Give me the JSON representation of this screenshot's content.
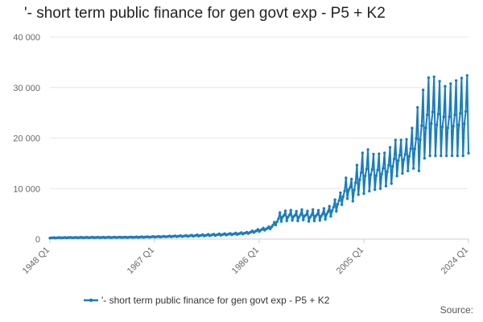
{
  "chart_data": {
    "type": "line",
    "title": "'- short term public finance for gen govt exp - P5 + K2",
    "xlabel": "",
    "ylabel": "",
    "x_range": [
      "1948 Q1",
      "2024 Q1"
    ],
    "x_tick_labels": [
      "1948 Q1",
      "1967 Q1",
      "1986 Q1",
      "2005 Q1",
      "2024 Q1"
    ],
    "ylim": [
      0,
      40000
    ],
    "y_tick_values": [
      0,
      10000,
      20000,
      30000,
      40000
    ],
    "y_tick_labels": [
      "0",
      "10 000",
      "20 000",
      "30 000",
      "40 000"
    ],
    "grid": "horizontal",
    "legend_position": "bottom",
    "series": [
      {
        "name": "'- short term public finance for gen govt exp - P5 + K2",
        "color": "#1a7dbd",
        "x": [
          "1948",
          "1952",
          "1956",
          "1960",
          "1964",
          "1968",
          "1972",
          "1976",
          "1978",
          "1980",
          "1982",
          "1984",
          "1986",
          "1988",
          "1989",
          "1990",
          "1991",
          "1992",
          "1993",
          "1994",
          "1995",
          "1996",
          "1997",
          "1998",
          "1999",
          "2000",
          "2001",
          "2002",
          "2003",
          "2004",
          "2005",
          "2006",
          "2007",
          "2008",
          "2009",
          "2010",
          "2011",
          "2012",
          "2013",
          "2014",
          "2015",
          "2016",
          "2017",
          "2018",
          "2019",
          "2020",
          "2021",
          "2022",
          "2023",
          "2024"
        ],
        "peak": [
          300,
          350,
          380,
          400,
          450,
          550,
          700,
          900,
          1000,
          1100,
          1200,
          1400,
          2000,
          2500,
          3600,
          5800,
          5500,
          5800,
          5400,
          6000,
          5400,
          6000,
          5600,
          6200,
          6600,
          8200,
          9500,
          13000,
          11500,
          15700,
          17500,
          17800,
          16500,
          17000,
          17100,
          18500,
          20000,
          19500,
          19800,
          22700,
          27200,
          30300,
          32500,
          32000,
          31000,
          30000,
          31000,
          31500,
          32000,
          32500
        ],
        "trough": [
          200,
          250,
          270,
          300,
          320,
          400,
          500,
          600,
          700,
          800,
          900,
          1100,
          1500,
          2000,
          2800,
          3500,
          3600,
          3700,
          3600,
          3800,
          3500,
          3600,
          3700,
          3900,
          4500,
          5500,
          6800,
          8000,
          7500,
          8800,
          9000,
          9500,
          9800,
          10000,
          10500,
          11000,
          12500,
          13000,
          13500,
          14000,
          13500,
          16000,
          16500,
          16500,
          16500,
          16500,
          16500,
          16500,
          16500,
          17000
        ]
      }
    ]
  },
  "legend": {
    "label": "'- short term public finance for gen govt exp - P5 + K2"
  },
  "source": {
    "label": "Source:"
  }
}
